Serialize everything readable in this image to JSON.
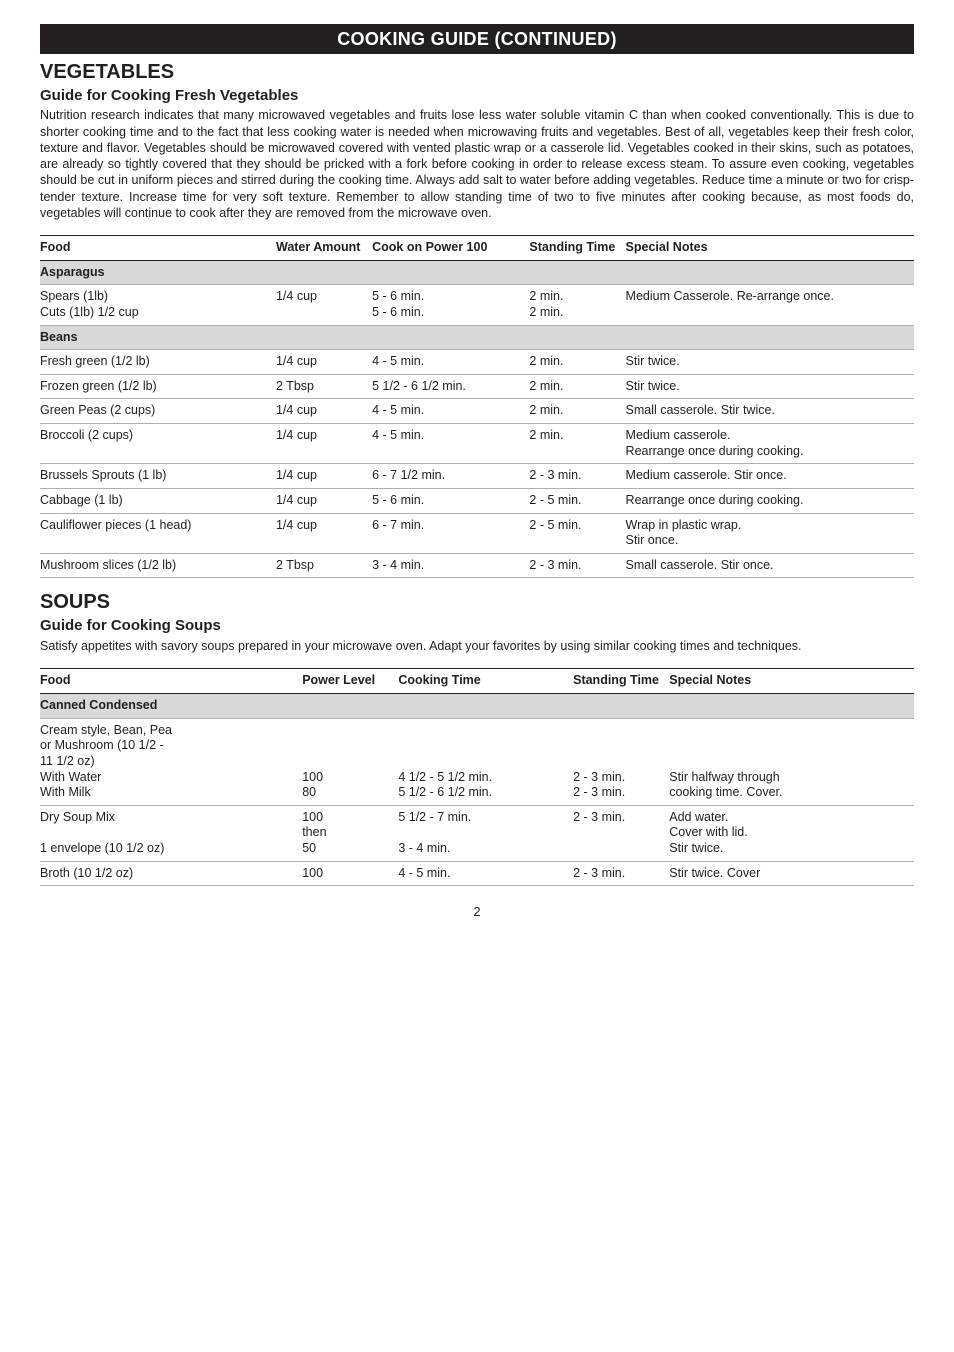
{
  "banner": "COOKING GUIDE (CONTINUED)",
  "vegSection": {
    "title": "VEGETABLES",
    "subtitle": "Guide for Cooking Fresh Vegetables",
    "intro": "Nutrition research indicates that many microwaved vegetables and fruits lose less water soluble vitamin C than when cooked conventionally. This is due to shorter cooking time and to the fact that less cooking water is needed when microwaving fruits and vegetables. Best of all, vegetables keep their fresh color, texture and flavor. Vegetables should be microwaved covered with vented plastic wrap or a casserole lid. Vegetables cooked in their skins, such as potatoes, are already so tightly covered that they should be pricked with a fork before cooking in order to release excess steam. To assure even cooking, vegetables should be cut in uniform pieces and stirred during the cooking time. Always add salt to water before adding vegetables. Reduce time a minute or two for crisp-tender texture. Increase time for very soft texture. Remember to allow standing time of two to five minutes after cooking because, as most foods do, vegetables will continue to cook after they are removed from the microwave oven.",
    "headers": {
      "c0": "Food",
      "c1": "Water Amount",
      "c2": "Cook on Power 100",
      "c3": "Standing Time",
      "c4": "Special Notes"
    },
    "colWidths": [
      "27%",
      "11%",
      "18%",
      "11%",
      "33%"
    ],
    "rows": [
      {
        "type": "group",
        "c0": "Asparagus"
      },
      {
        "type": "data",
        "c0": "Spears (1lb)\nCuts (1lb) 1/2 cup",
        "c1": "1/4 cup",
        "c2": "5 - 6 min.\n5 - 6 min.",
        "c3": "2 min.\n2 min.",
        "c4": "Medium Casserole. Re-arrange once."
      },
      {
        "type": "group",
        "c0": "Beans"
      },
      {
        "type": "data",
        "c0": "Fresh green (1/2 lb)",
        "c1": "1/4 cup",
        "c2": "4 - 5 min.",
        "c3": "2 min.",
        "c4": "Stir twice."
      },
      {
        "type": "data",
        "c0": "Frozen green (1/2 lb)",
        "c1": "2 Tbsp",
        "c2": "5 1/2 - 6 1/2 min.",
        "c3": "2 min.",
        "c4": "Stir twice."
      },
      {
        "type": "data",
        "c0": "Green Peas (2 cups)",
        "c1": "1/4 cup",
        "c2": "4 - 5 min.",
        "c3": "2 min.",
        "c4": "Small casserole. Stir twice."
      },
      {
        "type": "data",
        "c0": "Broccoli (2 cups)",
        "c1": "1/4 cup",
        "c2": "4 - 5 min.",
        "c3": "2 min.",
        "c4": "Medium casserole.\nRearrange once during cooking."
      },
      {
        "type": "data",
        "c0": "Brussels Sprouts (1 lb)",
        "c1": "1/4 cup",
        "c2": "6 - 7 1/2 min.",
        "c3": "2 - 3 min.",
        "c4": "Medium casserole. Stir once."
      },
      {
        "type": "data",
        "c0": "Cabbage (1 lb)",
        "c1": "1/4 cup",
        "c2": "5 - 6 min.",
        "c3": "2 - 5 min.",
        "c4": "Rearrange once during cooking."
      },
      {
        "type": "data",
        "c0": "Cauliflower pieces (1 head)",
        "c1": "1/4 cup",
        "c2": "6 - 7 min.",
        "c3": "2 - 5 min.",
        "c4": "Wrap in plastic wrap.\nStir once."
      },
      {
        "type": "data",
        "c0": "Mushroom slices (1/2 lb)",
        "c1": "2 Tbsp",
        "c2": "3 - 4 min.",
        "c3": "2 - 3 min.",
        "c4": "Small casserole. Stir once."
      }
    ]
  },
  "soupSection": {
    "title": "SOUPS",
    "subtitle": "Guide for Cooking Soups",
    "intro": "Satisfy appetites with savory soups prepared in your microwave oven. Adapt your favorites by using similar cooking times and techniques.",
    "headers": {
      "c0": "Food",
      "c1": "Power Level",
      "c2": "Cooking Time",
      "c3": "Standing Time",
      "c4": "Special Notes"
    },
    "colWidths": [
      "30%",
      "11%",
      "20%",
      "11%",
      "28%"
    ],
    "rows": [
      {
        "type": "group",
        "c0": "Canned Condensed"
      },
      {
        "type": "data",
        "c0": "Cream style, Bean, Pea\nor Mushroom (10 1/2 -\n11 1/2 oz)\nWith Water\nWith Milk",
        "c1": "\n\n\n100\n80",
        "c2": "\n\n\n4 1/2 - 5 1/2 min.\n5 1/2 - 6 1/2 min.",
        "c3": "\n\n\n2 - 3 min.\n2 - 3 min.",
        "c4": "\n\n\nStir halfway through\ncooking time. Cover."
      },
      {
        "type": "data",
        "c0": "Dry Soup Mix\n\n1 envelope (10 1/2 oz)",
        "c1": "100\nthen\n50",
        "c2": "5 1/2 - 7 min.\n\n3 - 4 min.",
        "c3": "2 - 3 min.",
        "c4": "Add water.\nCover with lid.\nStir twice."
      },
      {
        "type": "data",
        "c0": "Broth (10 1/2 oz)",
        "c1": "100",
        "c2": "4 - 5 min.",
        "c3": "2 - 3 min.",
        "c4": "Stir twice. Cover"
      }
    ]
  },
  "pageNumber": "2"
}
